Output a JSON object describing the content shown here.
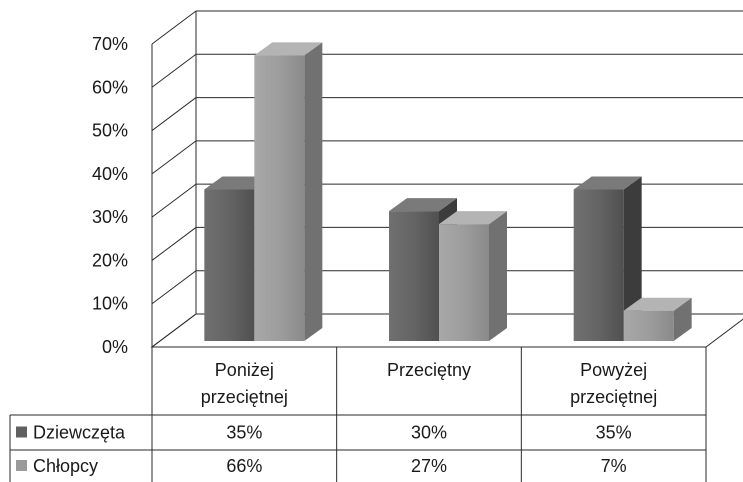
{
  "chart_data": {
    "type": "bar",
    "style": "3d-clustered-column-with-data-table",
    "categories": [
      [
        "Poniżej",
        "przeciętnej"
      ],
      [
        "Przeciętny"
      ],
      [
        "Powyżej",
        "przeciętnej"
      ]
    ],
    "series": [
      {
        "name": "Dziewczęta",
        "values": [
          35,
          30,
          35
        ],
        "labels": [
          "35%",
          "30%",
          "35%"
        ],
        "color": "#606060"
      },
      {
        "name": "Chłopcy",
        "values": [
          66,
          27,
          7
        ],
        "labels": [
          "66%",
          "27%",
          "7%"
        ],
        "color": "#9a9a9a"
      }
    ],
    "ylim": [
      0,
      70
    ],
    "yticks": [
      "0%",
      "10%",
      "20%",
      "30%",
      "40%",
      "50%",
      "60%",
      "70%"
    ],
    "grid": true,
    "legend": "data-table"
  }
}
